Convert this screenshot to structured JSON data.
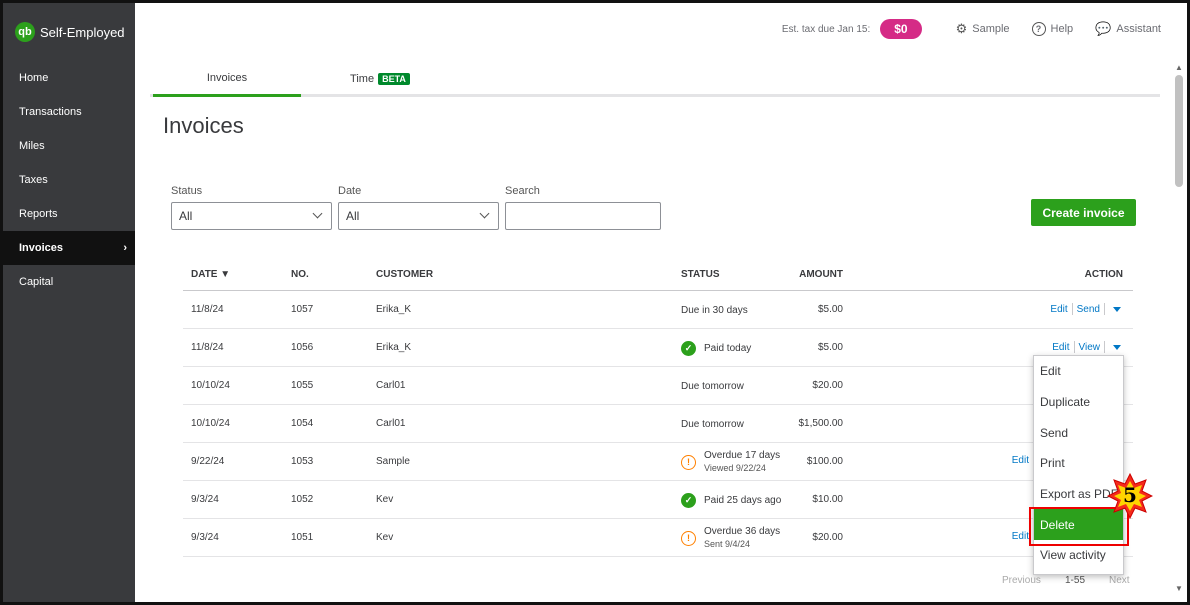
{
  "brand": {
    "logo": "qb",
    "name": "Self-Employed"
  },
  "sidebar": {
    "items": [
      {
        "label": "Home"
      },
      {
        "label": "Transactions"
      },
      {
        "label": "Miles"
      },
      {
        "label": "Taxes"
      },
      {
        "label": "Reports"
      },
      {
        "label": "Invoices",
        "active": true
      },
      {
        "label": "Capital"
      }
    ]
  },
  "topbar": {
    "est_tax_label": "Est. tax due Jan 15:",
    "est_tax_value": "$0",
    "sample_label": "Sample",
    "help_label": "Help",
    "assistant_label": "Assistant"
  },
  "tabs": [
    {
      "label": "Invoices",
      "active": true
    },
    {
      "label": "Time",
      "badge": "BETA"
    }
  ],
  "page": {
    "title": "Invoices"
  },
  "filters": {
    "status_label": "Status",
    "status_value": "All",
    "date_label": "Date",
    "date_value": "All",
    "search_label": "Search",
    "search_value": ""
  },
  "create_button": "Create invoice",
  "table": {
    "headers": {
      "date": "DATE ▼",
      "no": "NO.",
      "customer": "CUSTOMER",
      "amount": "AMOUNT",
      "status": "STATUS",
      "action": "ACTION"
    },
    "rows": [
      {
        "date": "11/8/24",
        "no": "1057",
        "customer": "Erika_K",
        "amount": "$5.00",
        "status": "Due in 30 days",
        "status_sub": "",
        "status_icon": "none",
        "actions": [
          "Edit",
          "Send"
        ]
      },
      {
        "date": "11/8/24",
        "no": "1056",
        "customer": "Erika_K",
        "amount": "$5.00",
        "status": "Paid today",
        "status_sub": "",
        "status_icon": "check",
        "actions": [
          "Edit",
          "View"
        ]
      },
      {
        "date": "10/10/24",
        "no": "1055",
        "customer": "Carl01",
        "amount": "$20.00",
        "status": "Due tomorrow",
        "status_sub": "",
        "status_icon": "none",
        "actions": []
      },
      {
        "date": "10/10/24",
        "no": "1054",
        "customer": "Carl01",
        "amount": "$1,500.00",
        "status": "Due tomorrow",
        "status_sub": "",
        "status_icon": "none",
        "actions": []
      },
      {
        "date": "9/22/24",
        "no": "1053",
        "customer": "Sample",
        "amount": "$100.00",
        "status": "Overdue 17 days",
        "status_sub": "Viewed 9/22/24",
        "status_icon": "warning",
        "actions": [
          "Edit"
        ]
      },
      {
        "date": "9/3/24",
        "no": "1052",
        "customer": "Kev",
        "amount": "$10.00",
        "status": "Paid 25 days ago",
        "status_sub": "",
        "status_icon": "check",
        "actions": []
      },
      {
        "date": "9/3/24",
        "no": "1051",
        "customer": "Kev",
        "amount": "$20.00",
        "status": "Overdue 36 days",
        "status_sub": "Sent 9/4/24",
        "status_icon": "warning",
        "actions": [
          "Edit"
        ]
      }
    ]
  },
  "menu": {
    "items": [
      "Edit",
      "Duplicate",
      "Send",
      "Print",
      "Export as PDF",
      "Delete",
      "View activity"
    ],
    "highlighted": "Delete"
  },
  "step_badge": "5",
  "pager": {
    "previous": "Previous",
    "range": "1-55",
    "next": "Next"
  },
  "colors": {
    "brand_green": "#2ca01c",
    "sidebar": "#393a3d",
    "tax_pill": "#d52b86",
    "link": "#0077c5",
    "warning": "#ff8000",
    "highlight_outline": "#ee0000"
  }
}
